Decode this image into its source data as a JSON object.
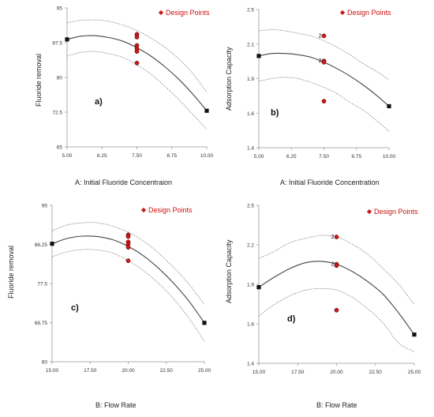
{
  "chart_data": [
    {
      "type": "line",
      "panel_label": "a)",
      "xlabel": "A: Initial Fluoride Concentraion",
      "ylabel": "Fluoride removal",
      "xticks": [
        "5.00",
        "6.25",
        "7.50",
        "8.75",
        "10.00"
      ],
      "yticks": [
        "65",
        "72.5",
        "80",
        "87.5",
        "95"
      ],
      "xlim": [
        5.0,
        10.0
      ],
      "ylim": [
        65,
        95
      ],
      "legend": "Design Points",
      "legend_position": "top-right",
      "fit_x": [
        5.0,
        5.5,
        6.0,
        6.5,
        7.0,
        7.5,
        8.0,
        8.5,
        9.0,
        9.5,
        10.0
      ],
      "fit": [
        88.2,
        88.9,
        89.0,
        88.6,
        87.8,
        86.4,
        84.6,
        82.3,
        79.6,
        76.4,
        72.8
      ],
      "upper": [
        91.8,
        92.3,
        92.4,
        92.1,
        91.3,
        90.1,
        88.5,
        86.5,
        84.0,
        80.8,
        76.8
      ],
      "lower": [
        84.6,
        85.4,
        85.6,
        85.1,
        84.3,
        82.7,
        80.7,
        78.1,
        75.2,
        72.0,
        68.8
      ],
      "endpoints": [
        {
          "x": 5.0,
          "y": 88.2
        },
        {
          "x": 10.0,
          "y": 72.8
        }
      ],
      "design_points": [
        {
          "x": 7.5,
          "y": 89.3
        },
        {
          "x": 7.5,
          "y": 88.7
        },
        {
          "x": 7.5,
          "y": 86.9
        },
        {
          "x": 7.5,
          "y": 86.2
        },
        {
          "x": 7.5,
          "y": 85.6
        },
        {
          "x": 7.5,
          "y": 83.1
        }
      ],
      "count_labels": []
    },
    {
      "type": "line",
      "panel_label": "b)",
      "xlabel": "A: Initial Fluoride Concentration",
      "ylabel": "Adsorption Capacity",
      "xticks": [
        "5.00",
        "6.25",
        "7.50",
        "8.75",
        "10.00"
      ],
      "yticks": [
        "1.4",
        "1.6",
        "1.9",
        "2.1",
        "2.5"
      ],
      "xlim": [
        5.0,
        10.0
      ],
      "ylim": [
        1.4,
        2.5
      ],
      "legend": "Design Points",
      "legend_position": "top-right",
      "fit_x": [
        5.0,
        5.5,
        6.0,
        6.5,
        7.0,
        7.5,
        8.0,
        8.5,
        9.0,
        9.5,
        10.0
      ],
      "fit": [
        2.13,
        2.15,
        2.15,
        2.14,
        2.12,
        2.08,
        2.03,
        1.97,
        1.9,
        1.82,
        1.73
      ],
      "upper": [
        2.33,
        2.34,
        2.33,
        2.31,
        2.29,
        2.25,
        2.2,
        2.14,
        2.07,
        2.01,
        1.94
      ],
      "lower": [
        1.93,
        1.95,
        1.96,
        1.95,
        1.92,
        1.88,
        1.83,
        1.76,
        1.7,
        1.62,
        1.53
      ],
      "endpoints": [
        {
          "x": 5.0,
          "y": 2.13
        },
        {
          "x": 10.0,
          "y": 1.73
        }
      ],
      "design_points": [
        {
          "x": 7.5,
          "y": 2.29
        },
        {
          "x": 7.5,
          "y": 2.09
        },
        {
          "x": 7.5,
          "y": 2.08
        },
        {
          "x": 7.5,
          "y": 1.77
        }
      ],
      "count_labels": [
        {
          "text": "2",
          "x": 7.5,
          "y": 2.29
        },
        {
          "text": "2",
          "x": 7.5,
          "y": 2.09
        }
      ]
    },
    {
      "type": "line",
      "panel_label": "c)",
      "xlabel": "B: Flow Rate",
      "ylabel": "Fluoride removal",
      "xticks": [
        "15.00",
        "17.50",
        "20.00",
        "22.50",
        "25.00"
      ],
      "yticks": [
        "60",
        "68.75",
        "77.5",
        "86.25",
        "95"
      ],
      "xlim": [
        15.0,
        25.0
      ],
      "ylim": [
        60,
        95
      ],
      "legend": "Design Points",
      "legend_position": "top-right",
      "fit_x": [
        15.0,
        16.0,
        17.0,
        18.0,
        19.0,
        20.0,
        21.0,
        22.0,
        23.0,
        24.0,
        25.0
      ],
      "fit": [
        86.4,
        87.6,
        88.1,
        88.0,
        87.3,
        85.8,
        83.7,
        80.9,
        77.5,
        73.5,
        68.7
      ],
      "upper": [
        89.3,
        90.6,
        91.1,
        91.1,
        90.3,
        89.0,
        87.0,
        84.3,
        81.0,
        77.3,
        72.8
      ],
      "lower": [
        83.5,
        84.6,
        85.1,
        85.0,
        84.3,
        82.6,
        80.4,
        77.5,
        74.0,
        69.7,
        64.6
      ],
      "endpoints": [
        {
          "x": 15.0,
          "y": 86.4
        },
        {
          "x": 25.0,
          "y": 68.7
        }
      ],
      "design_points": [
        {
          "x": 20.0,
          "y": 88.4
        },
        {
          "x": 20.0,
          "y": 88.0
        },
        {
          "x": 20.0,
          "y": 86.8
        },
        {
          "x": 20.0,
          "y": 86.3
        },
        {
          "x": 20.0,
          "y": 85.6
        },
        {
          "x": 20.0,
          "y": 82.6
        }
      ],
      "count_labels": []
    },
    {
      "type": "line",
      "panel_label": "d)",
      "xlabel": "B: Flow Rate",
      "ylabel": "Adsorption Capacity",
      "xticks": [
        "15.00",
        "17.50",
        "20.00",
        "22.50",
        "25.00"
      ],
      "yticks": [
        "1.4",
        "1.6",
        "1.9",
        "2.2",
        "2.5"
      ],
      "xlim": [
        15.0,
        25.0
      ],
      "ylim": [
        1.4,
        2.5
      ],
      "legend": "Design Points",
      "legend_position": "top-right",
      "fit_x": [
        15.0,
        16.0,
        17.0,
        18.0,
        19.0,
        20.0,
        21.0,
        22.0,
        23.0,
        24.0,
        25.0
      ],
      "fit": [
        1.93,
        2.0,
        2.06,
        2.1,
        2.11,
        2.09,
        2.04,
        1.97,
        1.88,
        1.75,
        1.6
      ],
      "upper": [
        2.13,
        2.18,
        2.24,
        2.27,
        2.29,
        2.28,
        2.23,
        2.16,
        2.06,
        1.95,
        1.81
      ],
      "lower": [
        1.73,
        1.81,
        1.87,
        1.91,
        1.92,
        1.91,
        1.86,
        1.78,
        1.68,
        1.54,
        1.48
      ],
      "endpoints": [
        {
          "x": 15.0,
          "y": 1.93
        },
        {
          "x": 25.0,
          "y": 1.6
        }
      ],
      "design_points": [
        {
          "x": 20.0,
          "y": 2.28
        },
        {
          "x": 20.0,
          "y": 2.09
        },
        {
          "x": 20.0,
          "y": 2.08
        },
        {
          "x": 20.0,
          "y": 1.77
        }
      ],
      "count_labels": [
        {
          "text": "2",
          "x": 20.0,
          "y": 2.28
        },
        {
          "text": "2",
          "x": 20.0,
          "y": 2.09
        }
      ]
    }
  ]
}
